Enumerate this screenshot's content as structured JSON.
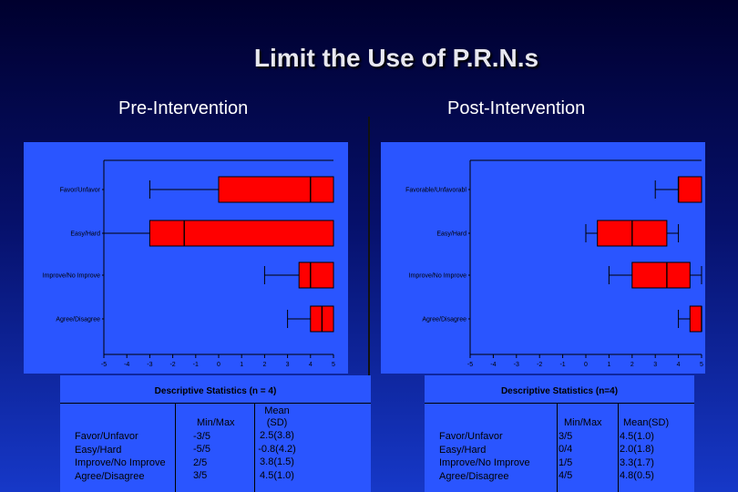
{
  "title": "Limit the Use of P.R.N.s",
  "pre": {
    "heading": "Pre-Intervention",
    "stats_title": "Descriptive Statistics (n = 4)",
    "col_minmax": "Min/Max",
    "col_mean_line1": "Mean",
    "col_mean_line2": "(SD)",
    "rows": [
      {
        "label": "Favor/Unfavor",
        "minmax": "-3/5",
        "mean": "2.5(3.8)"
      },
      {
        "label": "Easy/Hard",
        "minmax": "-5/5",
        "mean": "-0.8(4.2)"
      },
      {
        "label": "Improve/No Improve",
        "minmax": "2/5",
        "mean": "3.8(1.5)"
      },
      {
        "label": "Agree/Disagree",
        "minmax": "3/5",
        "mean": "4.5(1.0)"
      }
    ]
  },
  "post": {
    "heading": "Post-Intervention",
    "stats_title": "Descriptive Statistics (n=4)",
    "col_minmax": "Min/Max",
    "col_mean": "Mean(SD)",
    "rows": [
      {
        "label": "Favor/Unfavor",
        "minmax": "3/5",
        "mean": "4.5(1.0)"
      },
      {
        "label": "Easy/Hard",
        "minmax": "0/4",
        "mean": "2.0(1.8)"
      },
      {
        "label": "Improve/No Improve",
        "minmax": "1/5",
        "mean": "3.3(1.7)"
      },
      {
        "label": "Agree/Disagree",
        "minmax": "4/5",
        "mean": "4.8(0.5)"
      }
    ]
  },
  "chart_data": [
    {
      "type": "box",
      "orientation": "horizontal",
      "xlim": [
        -5,
        5
      ],
      "xticks": [
        "-5",
        "-4",
        "-3",
        "-2",
        "-1",
        "0",
        "1",
        "2",
        "3",
        "4",
        "5"
      ],
      "box_color": "#ff0000",
      "categories": [
        "Favor/Unfavor",
        "Easy/Hard",
        "Improve/No Improve",
        "Agree/Disagree"
      ],
      "boxes": [
        {
          "whisker_low": -3,
          "q1": 0,
          "median": 4,
          "q3": 5,
          "whisker_high": 5
        },
        {
          "whisker_low": -5,
          "q1": -3,
          "median": -1.5,
          "q3": 5,
          "whisker_high": 5
        },
        {
          "whisker_low": 2,
          "q1": 3.5,
          "median": 4,
          "q3": 5,
          "whisker_high": 5
        },
        {
          "whisker_low": 3,
          "q1": 4,
          "median": 4.5,
          "q3": 5,
          "whisker_high": 5
        }
      ]
    },
    {
      "type": "box",
      "orientation": "horizontal",
      "xlim": [
        -5,
        5
      ],
      "xticks": [
        "-5",
        "-4",
        "-3",
        "-2",
        "-1",
        "0",
        "1",
        "2",
        "3",
        "4",
        "5"
      ],
      "box_color": "#ff0000",
      "categories": [
        "Favorable/Unfavorabl",
        "Easy/Hard",
        "Improve/No Improve",
        "Agree/Disagree"
      ],
      "boxes": [
        {
          "whisker_low": 3,
          "q1": 4,
          "median": 4,
          "q3": 5,
          "whisker_high": 5
        },
        {
          "whisker_low": 0,
          "q1": 0.5,
          "median": 2,
          "q3": 3.5,
          "whisker_high": 4
        },
        {
          "whisker_low": 1,
          "q1": 2,
          "median": 3.5,
          "q3": 4.5,
          "whisker_high": 5
        },
        {
          "whisker_low": 4,
          "q1": 4.5,
          "median": 5,
          "q3": 5,
          "whisker_high": 5
        }
      ]
    }
  ]
}
